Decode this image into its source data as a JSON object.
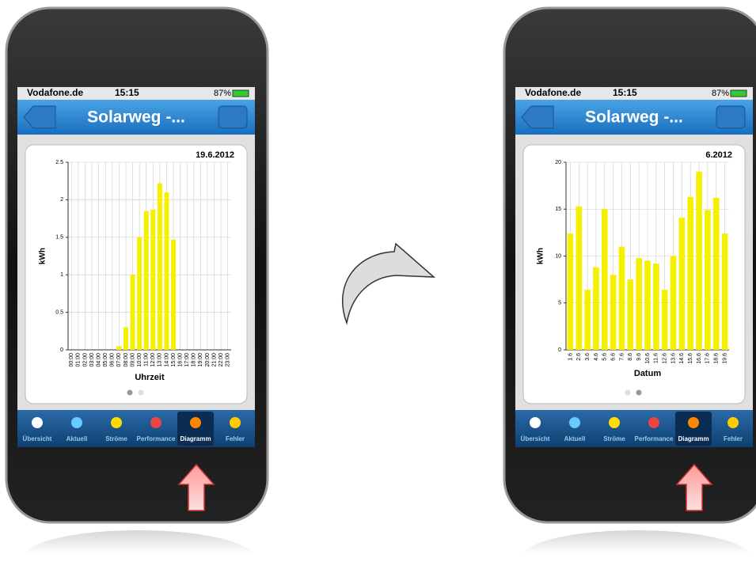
{
  "phones": [
    {
      "status": {
        "carrier": "Vodafone.de",
        "time": "15:15",
        "battery": "87%"
      },
      "nav_title": "Solarweg -...",
      "tabs": [
        "Übersicht",
        "Aktuell",
        "Ströme",
        "Performance",
        "Diagramm",
        "Fehler"
      ]
    },
    {
      "status": {
        "carrier": "Vodafone.de",
        "time": "15:15",
        "battery": "87%"
      },
      "nav_title": "Solarweg -...",
      "tabs": [
        "Übersicht",
        "Aktuell",
        "Ströme",
        "Performance",
        "Diagramm",
        "Fehler"
      ]
    }
  ],
  "chart_data": [
    {
      "type": "bar",
      "title": "19.6.2012",
      "x_label": "Uhrzeit",
      "y_label": "kWh",
      "color": "#f5f000",
      "grid": true,
      "categories": [
        "00:00",
        "01:00",
        "02:00",
        "03:00",
        "04:00",
        "05:00",
        "06:00",
        "07:00",
        "08:00",
        "09:00",
        "10:00",
        "11:00",
        "12:00",
        "13:00",
        "14:00",
        "15:00",
        "16:00",
        "17:00",
        "18:00",
        "19:00",
        "20:00",
        "21:00",
        "22:00",
        "23:00"
      ],
      "values": [
        0,
        0,
        0,
        0,
        0,
        0,
        0,
        0.05,
        0.3,
        1.0,
        1.5,
        1.85,
        1.87,
        2.22,
        2.1,
        1.47,
        0,
        0,
        0,
        0,
        0,
        0,
        0,
        0
      ],
      "ylim": [
        0,
        2.5
      ],
      "yticks": [
        0,
        0.5,
        1,
        1.5,
        2,
        2.5
      ]
    },
    {
      "type": "bar",
      "title": "6.2012",
      "x_label": "Datum",
      "y_label": "kWh",
      "color": "#f5f000",
      "grid": true,
      "categories": [
        "1.6",
        "2.6",
        "3.6",
        "4.6",
        "5.6",
        "6.6",
        "7.6",
        "8.6",
        "9.6",
        "10.6",
        "11.6",
        "12.6",
        "13.6",
        "14.6",
        "15.6",
        "16.6",
        "17.6",
        "18.6",
        "19.6"
      ],
      "values": [
        12.4,
        15.3,
        6.4,
        8.8,
        15,
        8,
        11,
        7.5,
        9.8,
        9.5,
        9.2,
        6.4,
        10,
        14.1,
        16.3,
        19,
        14.9,
        16.2,
        12.4
      ],
      "ylim": [
        0,
        20
      ],
      "yticks": [
        0,
        5,
        10,
        15,
        20
      ]
    }
  ]
}
